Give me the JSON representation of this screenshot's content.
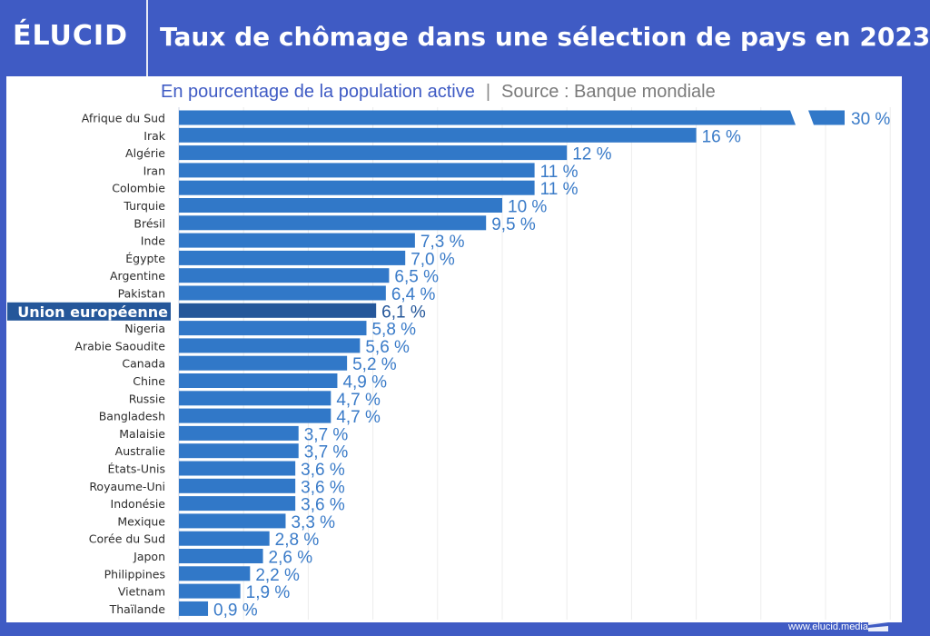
{
  "header": {
    "logo": "ÉLUCID",
    "title": "Taux de chômage dans une sélection de pays en 2023"
  },
  "subtitle": {
    "text": "En pourcentage de la population active",
    "separator": "|",
    "source": "Source : Banque mondiale"
  },
  "footer": {
    "url": "www.elucid.media"
  },
  "colors": {
    "bar": "#3178c8",
    "highlight_bar": "#25579a",
    "label": "#3a7bc8",
    "highlight_label": "#25579a",
    "highlight_bg": "#25579a",
    "frame": "#3f5bc4"
  },
  "chart_data": {
    "type": "bar",
    "orientation": "horizontal",
    "title": "Taux de chômage dans une sélection de pays en 2023",
    "subtitle": "En pourcentage de la population active | Source : Banque mondiale",
    "xlabel": "",
    "ylabel": "",
    "xlim": [
      0,
      22
    ],
    "grid": true,
    "axis_break": {
      "category": "Afrique du Sud",
      "note": "bar truncated (broken axis)"
    },
    "highlight": "Union européenne",
    "categories": [
      "Afrique du Sud",
      "Irak",
      "Algérie",
      "Iran",
      "Colombie",
      "Turquie",
      "Brésil",
      "Inde",
      "Égypte",
      "Argentine",
      "Pakistan",
      "Union européenne",
      "Nigeria",
      "Arabie Saoudite",
      "Canada",
      "Chine",
      "Russie",
      "Bangladesh",
      "Malaisie",
      "Australie",
      "États-Unis",
      "Royaume-Uni",
      "Indonésie",
      "Mexique",
      "Corée du Sud",
      "Japon",
      "Philippines",
      "Vietnam",
      "Thaïlande"
    ],
    "values": [
      30,
      16,
      12,
      11,
      11,
      10,
      9.5,
      7.3,
      7.0,
      6.5,
      6.4,
      6.1,
      5.8,
      5.6,
      5.2,
      4.9,
      4.7,
      4.7,
      3.7,
      3.7,
      3.6,
      3.6,
      3.6,
      3.3,
      2.8,
      2.6,
      2.2,
      1.9,
      0.9
    ],
    "labels": [
      "30 %",
      "16 %",
      "12 %",
      "11 %",
      "11 %",
      "10 %",
      "9,5 %",
      "7,3 %",
      "7,0 %",
      "6,5 %",
      "6,4 %",
      "6,1 %",
      "5,8 %",
      "5,6 %",
      "5,2 %",
      "4,9 %",
      "4,7 %",
      "4,7 %",
      "3,7 %",
      "3,7 %",
      "3,6 %",
      "3,6 %",
      "3,6 %",
      "3,3 %",
      "2,8 %",
      "2,6 %",
      "2,2 %",
      "1,9 %",
      "0,9 %"
    ]
  }
}
